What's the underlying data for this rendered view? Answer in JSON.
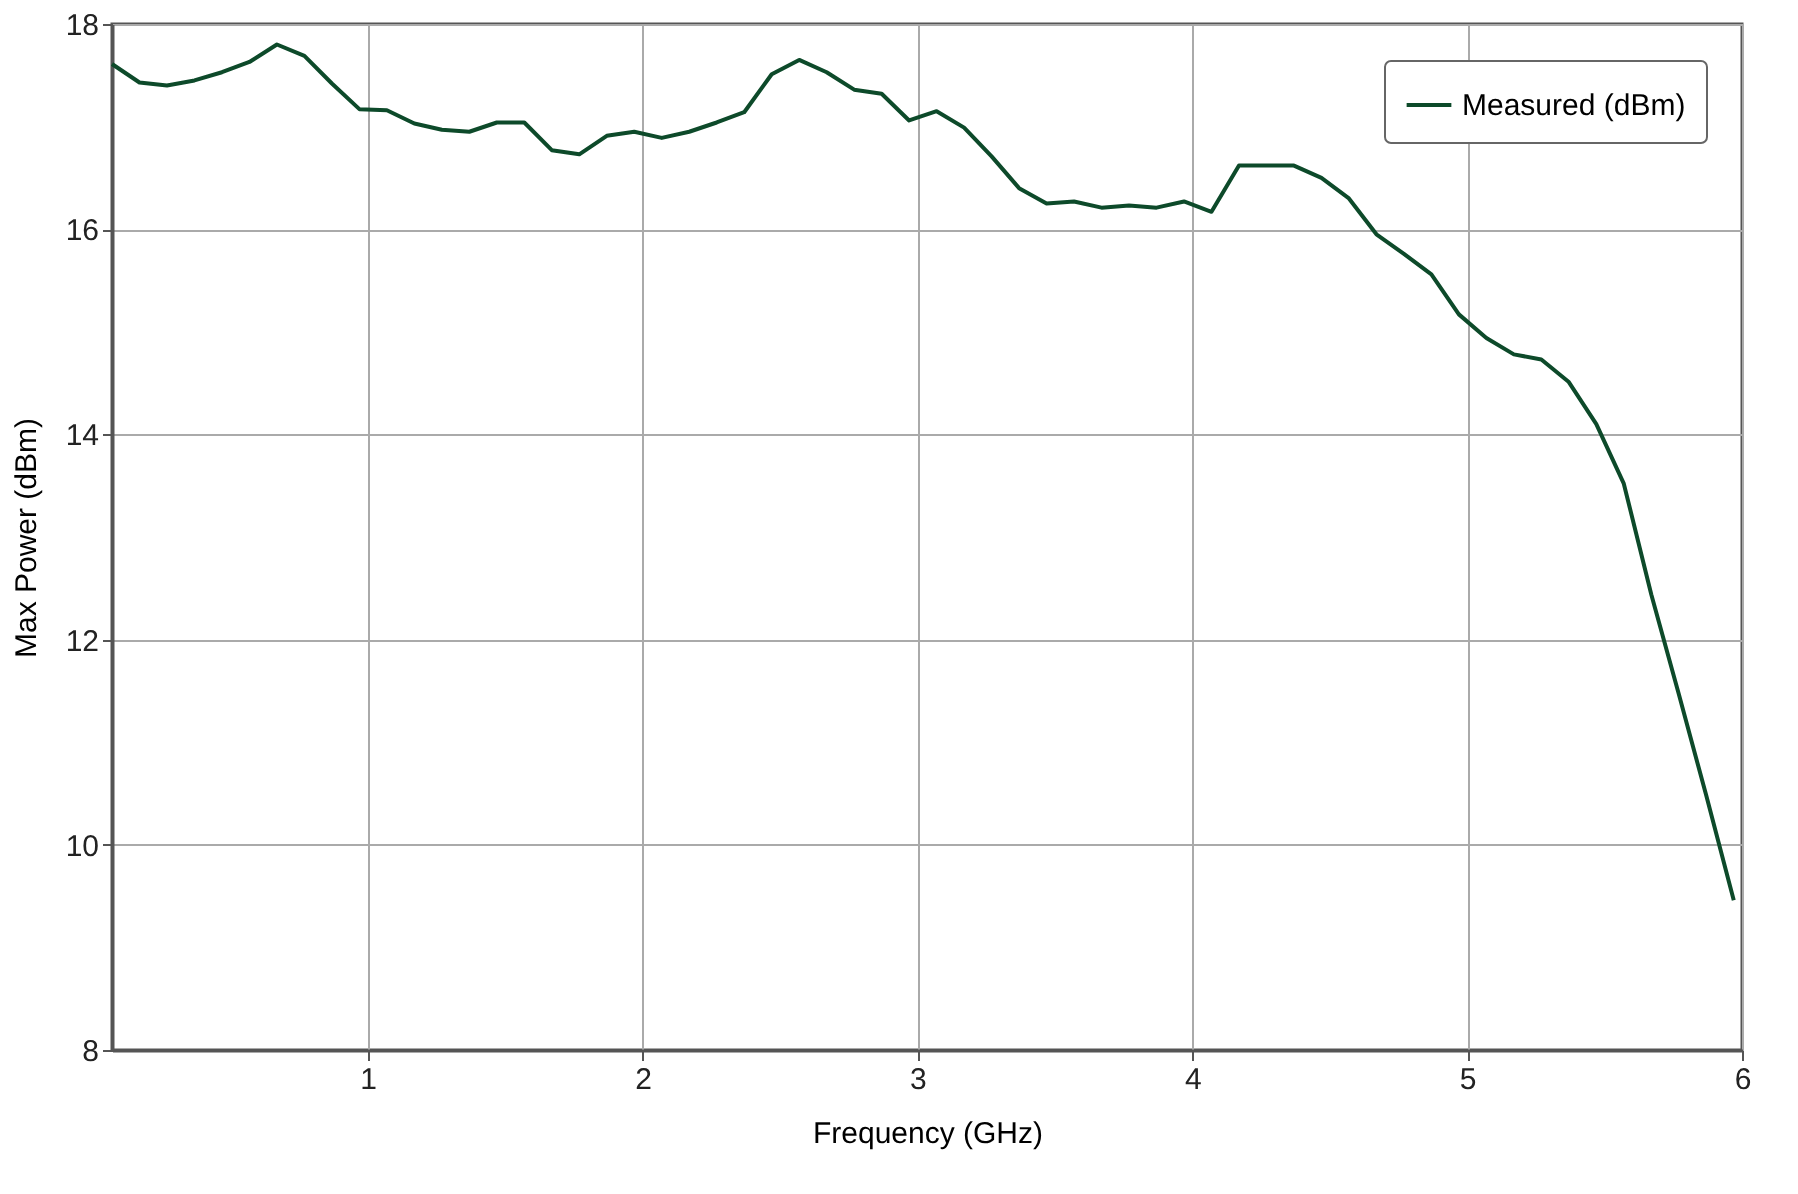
{
  "chart_data": {
    "type": "line",
    "xlabel": "Frequency (GHz)",
    "ylabel": "Max Power (dBm)",
    "x": [
      0.07,
      0.17,
      0.27,
      0.37,
      0.47,
      0.57,
      0.67,
      0.77,
      0.87,
      0.97,
      1.07,
      1.17,
      1.27,
      1.37,
      1.47,
      1.57,
      1.67,
      1.77,
      1.87,
      1.97,
      2.07,
      2.17,
      2.27,
      2.37,
      2.47,
      2.57,
      2.67,
      2.77,
      2.87,
      2.97,
      3.07,
      3.17,
      3.27,
      3.37,
      3.47,
      3.57,
      3.67,
      3.77,
      3.87,
      3.97,
      4.07,
      4.17,
      4.27,
      4.37,
      4.47,
      4.57,
      4.67,
      4.77,
      4.87,
      4.97,
      5.07,
      5.17,
      5.27,
      5.37,
      5.47,
      5.57,
      5.67,
      5.77,
      5.87,
      5.97
    ],
    "series": [
      {
        "name": "Measured (dBm)",
        "color": "#0d4a2a",
        "values": [
          17.61,
          17.43,
          17.4,
          17.45,
          17.53,
          17.63,
          17.8,
          17.69,
          17.42,
          17.17,
          17.16,
          17.03,
          16.97,
          16.95,
          17.04,
          17.04,
          16.77,
          16.73,
          16.91,
          16.95,
          16.89,
          16.95,
          17.04,
          17.14,
          17.51,
          17.65,
          17.53,
          17.36,
          17.32,
          17.06,
          17.15,
          16.99,
          16.71,
          16.4,
          16.25,
          16.27,
          16.21,
          16.23,
          16.21,
          16.27,
          16.17,
          16.62,
          16.62,
          16.62,
          16.5,
          16.3,
          15.95,
          15.76,
          15.56,
          15.17,
          14.94,
          14.78,
          14.73,
          14.51,
          14.1,
          13.52,
          12.44,
          11.47,
          10.48,
          9.46
        ]
      }
    ],
    "xlim": [
      0.07,
      6
    ],
    "xticks": [
      1,
      2,
      3,
      4,
      5,
      6
    ],
    "ylim": [
      8,
      18
    ],
    "yticks": [
      8,
      10,
      12,
      14,
      16,
      18
    ],
    "grid": true,
    "legend": "top right",
    "line_style": "solid",
    "marker": "none"
  }
}
